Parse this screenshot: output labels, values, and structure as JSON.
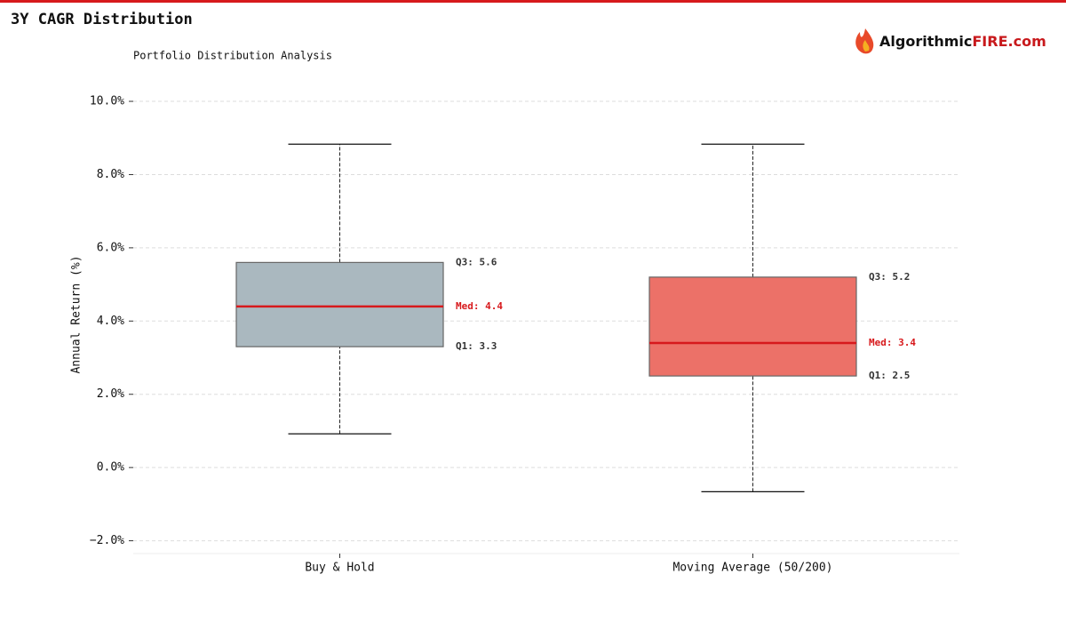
{
  "brand": {
    "name": "Algorithmic",
    "highlight": "FIRE.com"
  },
  "chart_data": {
    "type": "box",
    "title": "3Y CAGR Distribution",
    "subtitle": "Portfolio Distribution Analysis",
    "ylabel": "Annual Return (%)",
    "categories": [
      "Buy & Hold",
      "Moving Average (50/200)"
    ],
    "boxes": [
      {
        "color": "#aab8bf",
        "whislo": 0.92,
        "q1": 3.3,
        "med": 4.4,
        "q3": 5.6,
        "whishi": 8.83,
        "value_labels": {
          "q1": "Q1: 3.3",
          "med": "Med: 4.4",
          "q3": "Q3: 5.6"
        }
      },
      {
        "color": "#ec7168",
        "whislo": -0.66,
        "q1": 2.5,
        "med": 3.4,
        "q3": 5.2,
        "whishi": 8.83,
        "value_labels": {
          "q1": "Q1: 2.5",
          "med": "Med: 3.4",
          "q3": "Q3: 5.2"
        }
      }
    ],
    "median_color": "#d7191c",
    "ylim": [
      -2.35,
      10.45
    ],
    "yticks": [
      {
        "value": -2,
        "label": "−2.0%"
      },
      {
        "value": 0,
        "label": "0.0%"
      },
      {
        "value": 2,
        "label": "2.0%"
      },
      {
        "value": 4,
        "label": "4.0%"
      },
      {
        "value": 6,
        "label": "6.0%"
      },
      {
        "value": 8,
        "label": "8.0%"
      },
      {
        "value": 10,
        "label": "10.0%"
      }
    ],
    "grid": true
  }
}
